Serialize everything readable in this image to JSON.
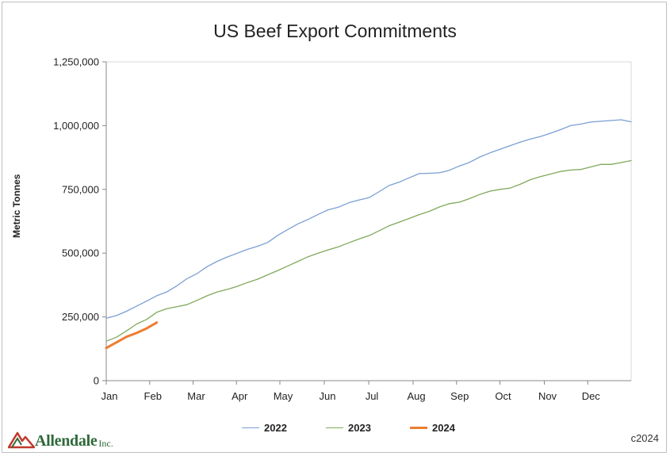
{
  "chart_data": {
    "type": "line",
    "title": "US Beef Export Commitments",
    "ylabel": "Metric Tonnes",
    "xlabel": "",
    "ylim": [
      0,
      1250000
    ],
    "yticks": [
      0,
      250000,
      500000,
      750000,
      1000000,
      1250000
    ],
    "ytick_labels": [
      "0",
      "250,000",
      "500,000",
      "750,000",
      "1,000,000",
      "1,250,000"
    ],
    "x_unit": "week",
    "xlim": [
      0,
      52
    ],
    "month_labels": [
      "Jan",
      "Feb",
      "Mar",
      "Apr",
      "May",
      "Jun",
      "Jul",
      "Aug",
      "Sep",
      "Oct",
      "Nov",
      "Dec"
    ],
    "month_positions": [
      0,
      4.3,
      8.6,
      12.9,
      17.2,
      21.6,
      26.0,
      30.4,
      34.7,
      39.0,
      43.4,
      47.7
    ],
    "legend_position": "bottom-center",
    "grid": false,
    "series": [
      {
        "name": "2022",
        "color": "#7a9fd4",
        "values": [
          245000,
          255000,
          272000,
          292000,
          312000,
          333000,
          348000,
          372000,
          400000,
          420000,
          447000,
          468000,
          485000,
          500000,
          515000,
          527000,
          542000,
          570000,
          593000,
          615000,
          632000,
          652000,
          670000,
          680000,
          697000,
          708000,
          717000,
          740000,
          765000,
          778000,
          795000,
          812000,
          813000,
          815000,
          825000,
          842000,
          856000,
          877000,
          893000,
          907000,
          921000,
          935000,
          947000,
          957000,
          970000,
          984000,
          1000000,
          1006000,
          1014000,
          1017000,
          1020000,
          1023000,
          1015000
        ]
      },
      {
        "name": "2023",
        "color": "#7fa95b",
        "values": [
          155000,
          170000,
          195000,
          222000,
          240000,
          268000,
          282000,
          290000,
          298000,
          315000,
          333000,
          348000,
          358000,
          370000,
          385000,
          398000,
          415000,
          432000,
          450000,
          468000,
          486000,
          500000,
          513000,
          525000,
          540000,
          555000,
          568000,
          587000,
          607000,
          621000,
          636000,
          651000,
          664000,
          681000,
          694000,
          700000,
          714000,
          730000,
          743000,
          750000,
          755000,
          770000,
          788000,
          800000,
          810000,
          820000,
          826000,
          828000,
          838000,
          848000,
          848000,
          855000,
          863000
        ]
      },
      {
        "name": "2024",
        "color": "#ed7d31",
        "values": [
          128000,
          150000,
          172000,
          187000,
          205000,
          228000
        ]
      }
    ]
  },
  "logo": {
    "name": "Allendale",
    "suffix": "Inc."
  },
  "copyright": "c2024"
}
